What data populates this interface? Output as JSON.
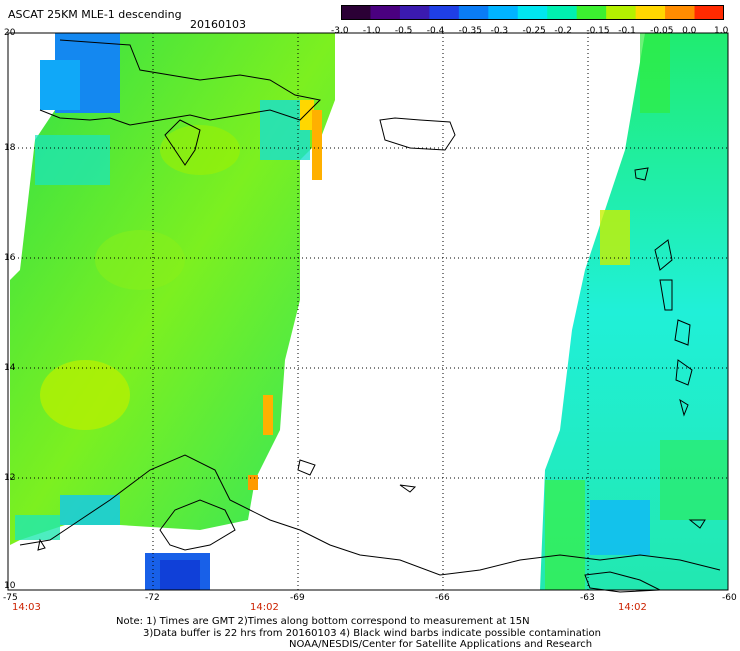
{
  "header": {
    "title": "ASCAT 25KM MLE-1 descending",
    "date": "20160103"
  },
  "colorbar": {
    "labels": [
      "-3.0",
      "-1.0",
      "-0.5",
      "-0.4",
      "-0.35",
      "-0.3",
      "-0.25",
      "-0.2",
      "-0.15",
      "-0.1",
      "-0.05",
      "0.0",
      "1.0"
    ],
    "colors": [
      "#2b0035",
      "#4a0080",
      "#3b1ab0",
      "#1f3fe6",
      "#0a7cf5",
      "#00b4ff",
      "#00e6f0",
      "#00f0b0",
      "#3cf030",
      "#b4f000",
      "#ffd700",
      "#ff8c00",
      "#ff2a00"
    ]
  },
  "axes": {
    "lat_labels": [
      "20",
      "18",
      "16",
      "14",
      "12",
      "10"
    ],
    "lon_labels": [
      "-75",
      "-72",
      "-69",
      "-66",
      "-63",
      "-60"
    ],
    "time_labels": [
      "14:03",
      "14:02",
      "14:02"
    ]
  },
  "notes": {
    "line1": "Note: 1) Times are GMT 2)Times along bottom correspond to measurement at 15N",
    "line2": "3)Data buffer is 22 hrs from 20160103 4) Black wind barbs indicate possible contamination",
    "line3": "NOAA/NESDIS/Center for Satellite Applications and Research"
  }
}
